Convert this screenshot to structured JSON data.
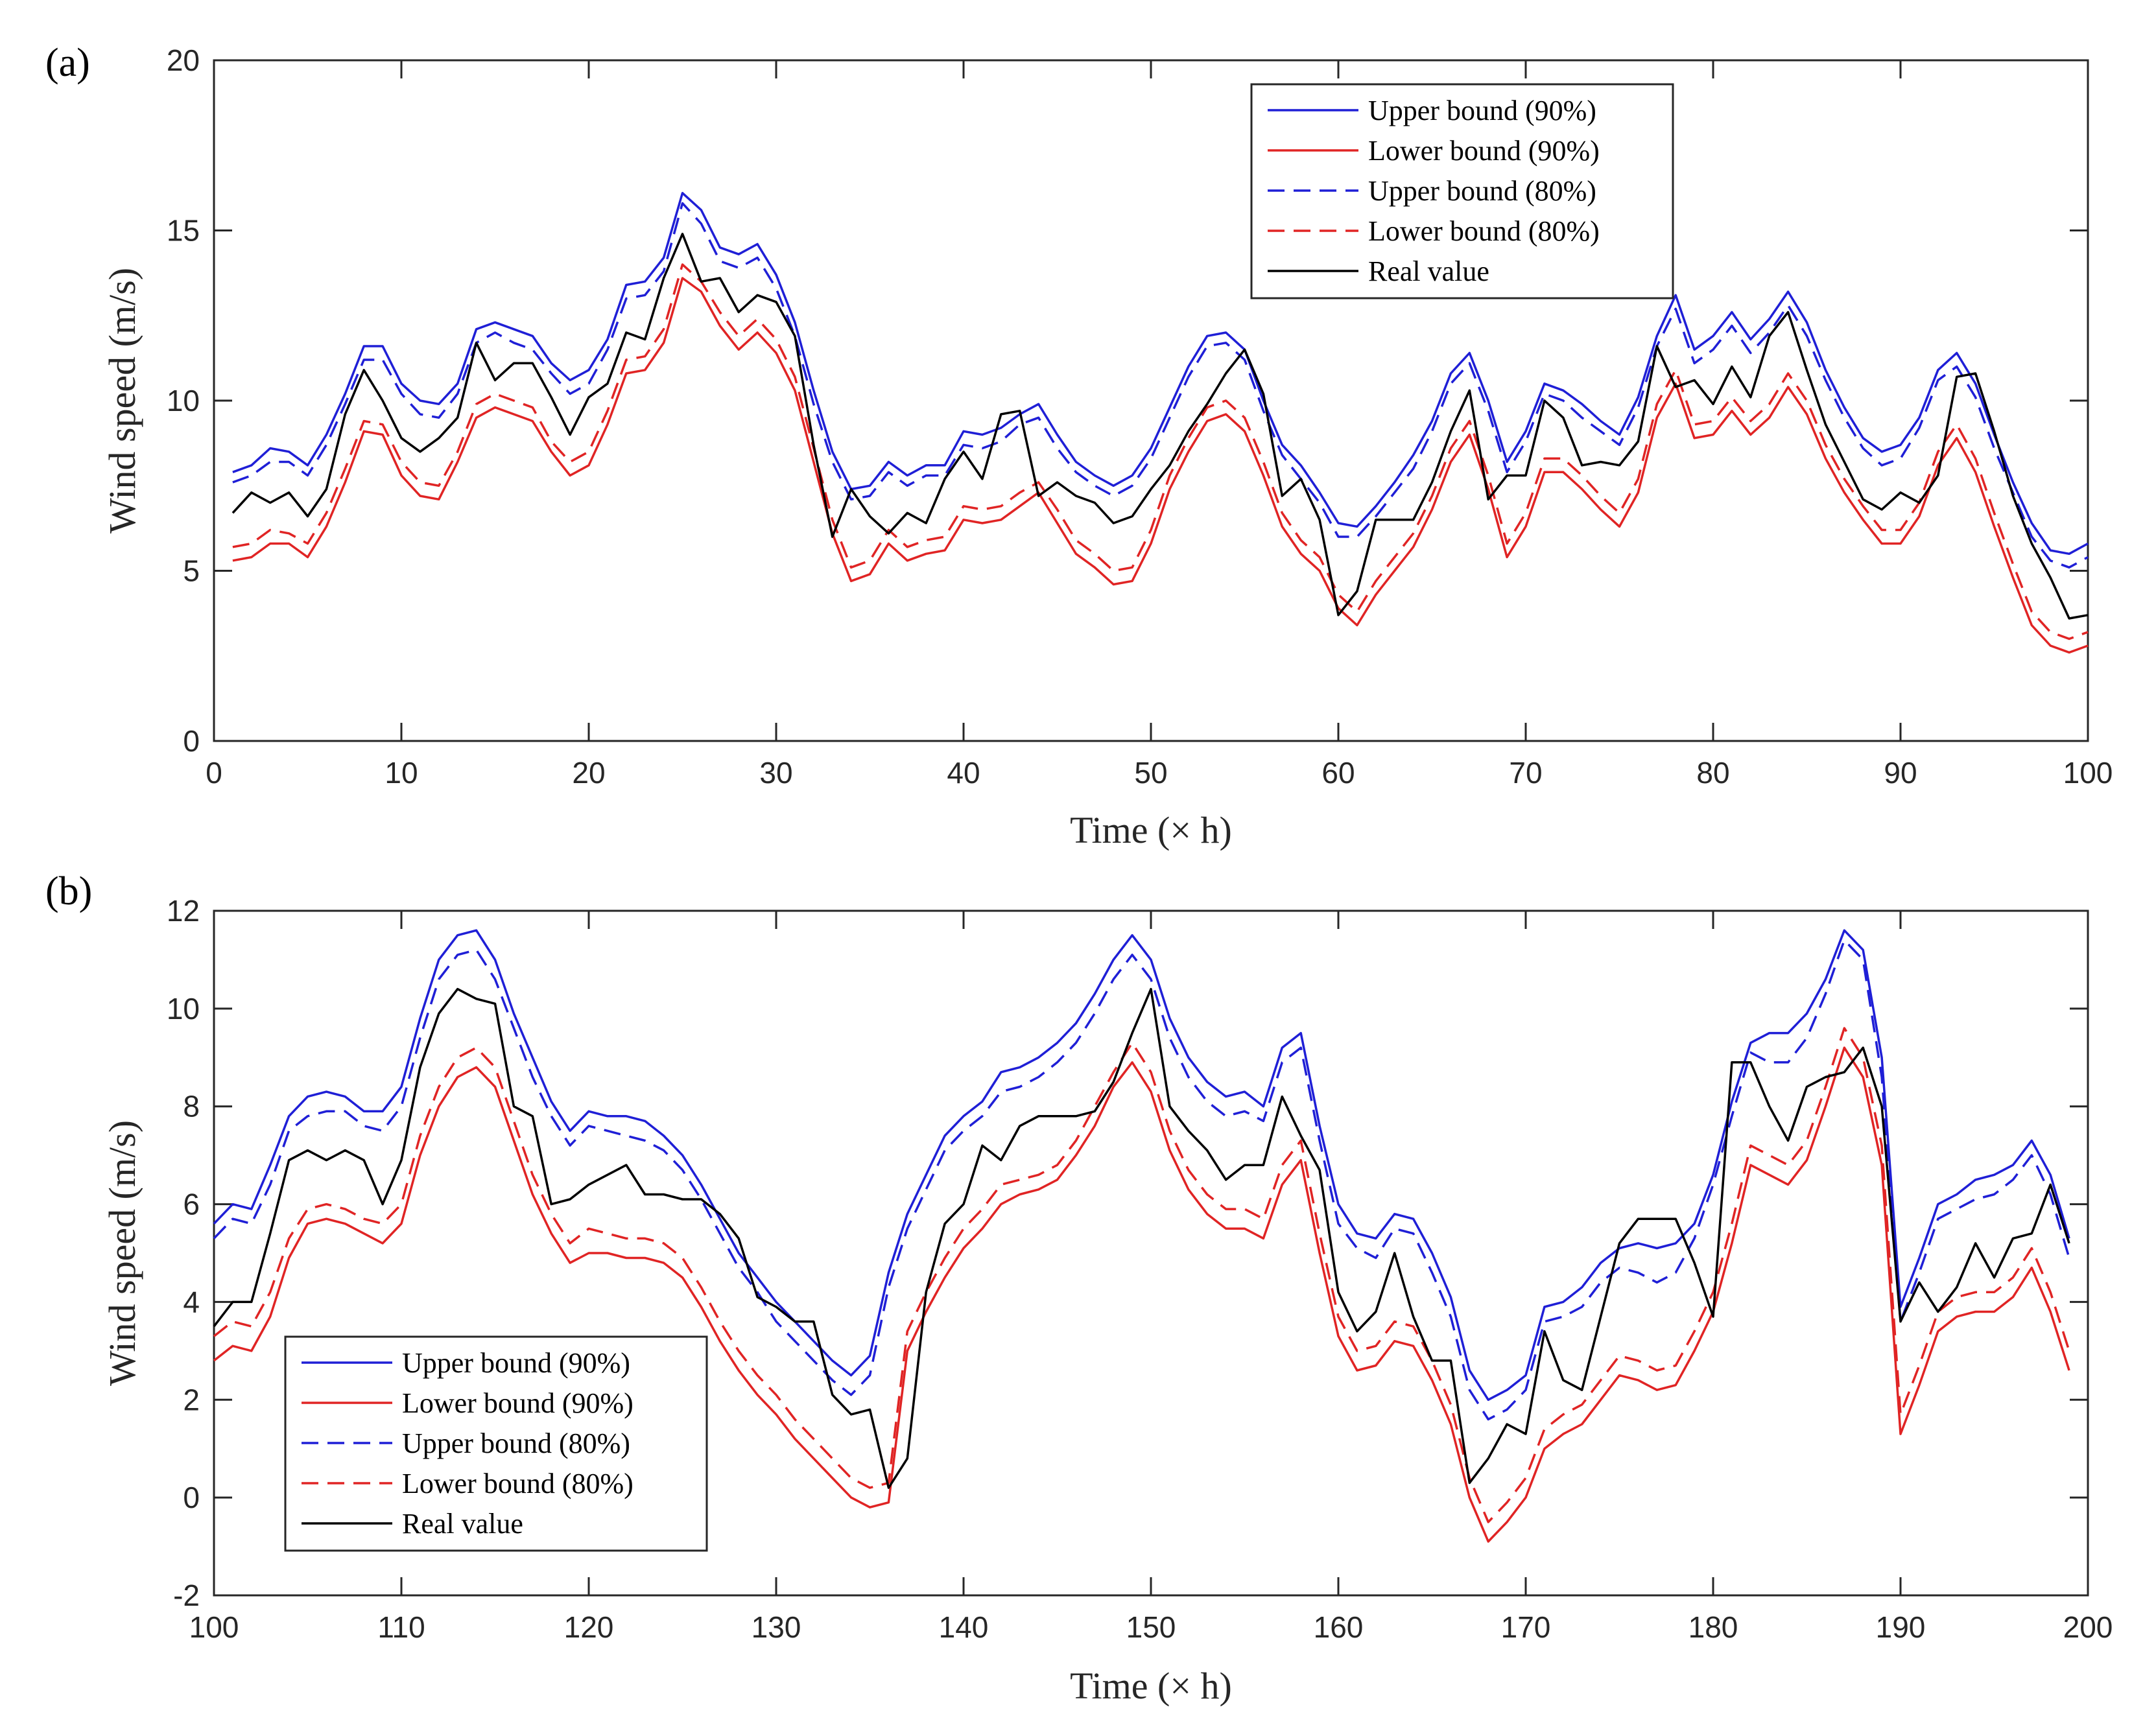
{
  "colors": {
    "upper": "#1f1fd6",
    "lower": "#e02424",
    "real": "#000000",
    "axis": "#262626"
  },
  "chart_data": [
    {
      "type": "line",
      "panel_label": "(a)",
      "xlabel": "Time (× h)",
      "ylabel": "Wind speed (m/s)",
      "xlim": [
        0,
        100
      ],
      "ylim": [
        0,
        20
      ],
      "xticks": [
        0,
        10,
        20,
        30,
        40,
        50,
        60,
        70,
        80,
        90,
        100
      ],
      "yticks": [
        0,
        5,
        10,
        15,
        20
      ],
      "legend_position": "top-right",
      "x_start": 1,
      "series": [
        {
          "name": "Upper bound (90%)",
          "style": "solid",
          "color": "upper",
          "values": [
            7.9,
            8.1,
            8.6,
            8.5,
            8.1,
            9.0,
            10.2,
            11.6,
            11.6,
            10.5,
            10.0,
            9.9,
            10.5,
            12.1,
            12.3,
            12.1,
            11.9,
            11.1,
            10.6,
            10.9,
            11.8,
            13.4,
            13.5,
            14.2,
            16.1,
            15.6,
            14.5,
            14.3,
            14.6,
            13.7,
            12.3,
            10.3,
            8.5,
            7.4,
            7.5,
            8.2,
            7.8,
            8.1,
            8.1,
            9.1,
            9.0,
            9.2,
            9.6,
            9.9,
            9.0,
            8.2,
            7.8,
            7.5,
            7.8,
            8.6,
            9.8,
            11.0,
            11.9,
            12.0,
            11.5,
            10.0,
            8.7,
            8.1,
            7.3,
            6.4,
            6.3,
            6.9,
            7.6,
            8.4,
            9.4,
            10.8,
            11.4,
            10.0,
            8.2,
            9.1,
            10.5,
            10.3,
            9.9,
            9.4,
            9.0,
            10.1,
            11.9,
            13.1,
            11.5,
            11.9,
            12.6,
            11.8,
            12.4,
            13.2,
            12.3,
            10.9,
            9.8,
            8.9,
            8.5,
            8.7,
            9.5,
            10.9,
            11.4,
            10.5,
            9.0,
            7.6,
            6.4,
            5.6,
            5.5,
            5.8
          ]
        },
        {
          "name": "Lower bound (90%)",
          "style": "solid",
          "color": "lower",
          "values": [
            5.3,
            5.4,
            5.8,
            5.8,
            5.4,
            6.3,
            7.6,
            9.1,
            9.0,
            7.8,
            7.2,
            7.1,
            8.2,
            9.5,
            9.8,
            9.6,
            9.4,
            8.5,
            7.8,
            8.1,
            9.3,
            10.8,
            10.9,
            11.7,
            13.6,
            13.2,
            12.2,
            11.5,
            12.0,
            11.4,
            10.3,
            8.2,
            6.1,
            4.7,
            4.9,
            5.8,
            5.3,
            5.5,
            5.6,
            6.5,
            6.4,
            6.5,
            6.9,
            7.3,
            6.4,
            5.5,
            5.1,
            4.6,
            4.7,
            5.8,
            7.4,
            8.5,
            9.4,
            9.6,
            9.1,
            7.8,
            6.3,
            5.5,
            5.0,
            3.9,
            3.4,
            4.3,
            5.0,
            5.7,
            6.8,
            8.2,
            9.0,
            7.4,
            5.4,
            6.3,
            7.9,
            7.9,
            7.4,
            6.8,
            6.3,
            7.3,
            9.5,
            10.5,
            8.9,
            9.0,
            9.7,
            9.0,
            9.5,
            10.4,
            9.6,
            8.3,
            7.3,
            6.5,
            5.8,
            5.8,
            6.6,
            8.1,
            8.9,
            7.9,
            6.3,
            4.8,
            3.4,
            2.8,
            2.6,
            2.8
          ]
        },
        {
          "name": "Upper bound (80%)",
          "style": "dashed",
          "color": "upper",
          "values": [
            7.6,
            7.8,
            8.2,
            8.2,
            7.8,
            8.7,
            9.9,
            11.2,
            11.2,
            10.2,
            9.6,
            9.5,
            10.2,
            11.7,
            12.0,
            11.7,
            11.5,
            10.8,
            10.2,
            10.5,
            11.5,
            13.0,
            13.1,
            13.8,
            15.8,
            15.2,
            14.1,
            13.9,
            14.2,
            13.3,
            11.9,
            9.9,
            8.2,
            7.1,
            7.2,
            7.9,
            7.5,
            7.8,
            7.8,
            8.7,
            8.6,
            8.8,
            9.3,
            9.5,
            8.6,
            7.9,
            7.5,
            7.2,
            7.5,
            8.3,
            9.5,
            10.7,
            11.6,
            11.7,
            11.2,
            9.7,
            8.4,
            7.7,
            7.0,
            6.0,
            6.0,
            6.6,
            7.3,
            8.0,
            9.1,
            10.5,
            11.1,
            9.7,
            7.9,
            8.8,
            10.2,
            10.0,
            9.5,
            9.1,
            8.7,
            9.8,
            11.6,
            12.7,
            11.1,
            11.5,
            12.2,
            11.4,
            12.0,
            12.8,
            11.9,
            10.6,
            9.5,
            8.6,
            8.1,
            8.3,
            9.2,
            10.6,
            11.0,
            10.1,
            8.6,
            7.3,
            6.0,
            5.3,
            5.1,
            5.4
          ]
        },
        {
          "name": "Lower bound (80%)",
          "style": "dashed",
          "color": "lower",
          "values": [
            5.7,
            5.8,
            6.2,
            6.1,
            5.8,
            6.7,
            8.0,
            9.4,
            9.3,
            8.2,
            7.6,
            7.5,
            8.5,
            9.9,
            10.2,
            10.0,
            9.8,
            8.8,
            8.2,
            8.5,
            9.7,
            11.2,
            11.3,
            12.1,
            14.0,
            13.5,
            12.6,
            11.9,
            12.4,
            11.8,
            10.7,
            8.6,
            6.5,
            5.1,
            5.3,
            6.2,
            5.7,
            5.9,
            6.0,
            6.9,
            6.8,
            6.9,
            7.3,
            7.6,
            6.8,
            5.9,
            5.5,
            5.0,
            5.1,
            6.2,
            7.8,
            8.9,
            9.8,
            10.0,
            9.5,
            8.2,
            6.7,
            5.9,
            5.4,
            4.3,
            3.8,
            4.7,
            5.4,
            6.1,
            7.2,
            8.6,
            9.4,
            7.8,
            5.8,
            6.7,
            8.3,
            8.3,
            7.8,
            7.2,
            6.7,
            7.7,
            9.9,
            10.9,
            9.3,
            9.4,
            10.1,
            9.4,
            9.9,
            10.8,
            10.0,
            8.7,
            7.7,
            6.9,
            6.2,
            6.2,
            7.0,
            8.5,
            9.3,
            8.3,
            6.7,
            5.2,
            3.8,
            3.2,
            3.0,
            3.2
          ]
        },
        {
          "name": "Real value",
          "style": "solid",
          "color": "real",
          "values": [
            6.7,
            7.3,
            7.0,
            7.3,
            6.6,
            7.4,
            9.6,
            10.9,
            10.0,
            8.9,
            8.5,
            8.9,
            9.5,
            11.7,
            10.6,
            11.1,
            11.1,
            10.1,
            9.0,
            10.1,
            10.5,
            12.0,
            11.8,
            13.6,
            14.9,
            13.5,
            13.6,
            12.6,
            13.1,
            12.9,
            11.9,
            8.7,
            6.0,
            7.4,
            6.6,
            6.1,
            6.7,
            6.4,
            7.7,
            8.5,
            7.7,
            9.6,
            9.7,
            7.2,
            7.6,
            7.2,
            7.0,
            6.4,
            6.6,
            7.4,
            8.1,
            9.1,
            9.9,
            10.8,
            11.5,
            10.2,
            7.2,
            7.7,
            6.5,
            3.7,
            4.4,
            6.5,
            6.5,
            6.5,
            7.6,
            9.1,
            10.3,
            7.1,
            7.8,
            7.8,
            10.0,
            9.5,
            8.1,
            8.2,
            8.1,
            8.8,
            11.6,
            10.4,
            10.6,
            9.9,
            11.0,
            10.1,
            11.9,
            12.6,
            10.9,
            9.3,
            8.2,
            7.1,
            6.8,
            7.3,
            7.0,
            7.8,
            10.7,
            10.8,
            9.1,
            7.2,
            5.8,
            4.8,
            3.6,
            3.7
          ]
        }
      ]
    },
    {
      "type": "line",
      "panel_label": "(b)",
      "xlabel": "Time (× h)",
      "ylabel": "Wind speed (m/s)",
      "xlim": [
        100,
        200
      ],
      "ylim": [
        -2,
        12
      ],
      "xticks": [
        100,
        110,
        120,
        130,
        140,
        150,
        160,
        170,
        180,
        190,
        200
      ],
      "yticks": [
        -2,
        0,
        2,
        4,
        6,
        8,
        10,
        12
      ],
      "legend_position": "bottom-left",
      "x_start": 100,
      "series": [
        {
          "name": "Upper bound (90%)",
          "style": "solid",
          "color": "upper",
          "values": [
            5.6,
            6.0,
            5.9,
            6.8,
            7.8,
            8.2,
            8.3,
            8.2,
            7.9,
            7.9,
            8.4,
            9.8,
            11.0,
            11.5,
            11.6,
            11.0,
            9.9,
            9.0,
            8.1,
            7.5,
            7.9,
            7.8,
            7.8,
            7.7,
            7.4,
            7.0,
            6.4,
            5.7,
            5.0,
            4.5,
            4.0,
            3.6,
            3.2,
            2.8,
            2.5,
            2.9,
            4.6,
            5.8,
            6.6,
            7.4,
            7.8,
            8.1,
            8.7,
            8.8,
            9.0,
            9.3,
            9.7,
            10.3,
            11.0,
            11.5,
            11.0,
            9.8,
            9.0,
            8.5,
            8.2,
            8.3,
            8.0,
            9.2,
            9.5,
            7.6,
            6.0,
            5.4,
            5.3,
            5.8,
            5.7,
            5.0,
            4.1,
            2.6,
            2.0,
            2.2,
            2.5,
            3.9,
            4.0,
            4.3,
            4.8,
            5.1,
            5.2,
            5.1,
            5.2,
            5.6,
            6.6,
            8.1,
            9.3,
            9.5,
            9.5,
            9.9,
            10.6,
            11.6,
            11.2,
            9.0,
            3.9,
            4.9,
            6.0,
            6.2,
            6.5,
            6.6,
            6.8,
            7.3,
            6.6,
            5.3
          ]
        },
        {
          "name": "Lower bound (90%)",
          "style": "solid",
          "color": "lower",
          "values": [
            2.8,
            3.1,
            3.0,
            3.7,
            4.9,
            5.6,
            5.7,
            5.6,
            5.4,
            5.2,
            5.6,
            7.0,
            8.0,
            8.6,
            8.8,
            8.4,
            7.3,
            6.2,
            5.4,
            4.8,
            5.0,
            5.0,
            4.9,
            4.9,
            4.8,
            4.5,
            3.9,
            3.2,
            2.6,
            2.1,
            1.7,
            1.2,
            0.8,
            0.4,
            0.0,
            -0.2,
            -0.1,
            3.0,
            3.8,
            4.5,
            5.1,
            5.5,
            6.0,
            6.2,
            6.3,
            6.5,
            7.0,
            7.6,
            8.4,
            8.9,
            8.3,
            7.1,
            6.3,
            5.8,
            5.5,
            5.5,
            5.3,
            6.4,
            6.9,
            5.0,
            3.3,
            2.6,
            2.7,
            3.2,
            3.1,
            2.4,
            1.5,
            0.0,
            -0.9,
            -0.5,
            0.0,
            1.0,
            1.3,
            1.5,
            2.0,
            2.5,
            2.4,
            2.2,
            2.3,
            3.0,
            3.8,
            5.2,
            6.8,
            6.6,
            6.4,
            6.9,
            8.0,
            9.2,
            8.6,
            6.8,
            1.3,
            2.3,
            3.4,
            3.7,
            3.8,
            3.8,
            4.1,
            4.7,
            3.8,
            2.6
          ]
        },
        {
          "name": "Upper bound (80%)",
          "style": "dashed",
          "color": "upper",
          "values": [
            5.3,
            5.7,
            5.6,
            6.4,
            7.5,
            7.8,
            7.9,
            7.9,
            7.6,
            7.5,
            8.0,
            9.4,
            10.6,
            11.1,
            11.2,
            10.6,
            9.6,
            8.6,
            7.8,
            7.2,
            7.6,
            7.5,
            7.4,
            7.3,
            7.1,
            6.7,
            6.1,
            5.4,
            4.7,
            4.2,
            3.6,
            3.2,
            2.8,
            2.4,
            2.1,
            2.5,
            4.3,
            5.5,
            6.3,
            7.1,
            7.5,
            7.8,
            8.3,
            8.4,
            8.6,
            8.9,
            9.3,
            9.9,
            10.6,
            11.1,
            10.6,
            9.4,
            8.6,
            8.1,
            7.8,
            7.9,
            7.7,
            8.9,
            9.2,
            7.3,
            5.6,
            5.1,
            4.9,
            5.5,
            5.4,
            4.6,
            3.7,
            2.2,
            1.6,
            1.8,
            2.2,
            3.6,
            3.7,
            3.9,
            4.4,
            4.7,
            4.6,
            4.4,
            4.6,
            5.3,
            6.4,
            7.8,
            9.1,
            8.9,
            8.9,
            9.4,
            10.3,
            11.4,
            11.0,
            8.6,
            3.6,
            4.6,
            5.7,
            5.9,
            6.1,
            6.2,
            6.5,
            7.0,
            6.2,
            4.9
          ]
        },
        {
          "name": "Lower bound (80%)",
          "style": "dashed",
          "color": "lower",
          "values": [
            3.3,
            3.6,
            3.5,
            4.2,
            5.3,
            5.9,
            6.0,
            5.9,
            5.7,
            5.6,
            6.0,
            7.4,
            8.4,
            9.0,
            9.2,
            8.8,
            7.7,
            6.6,
            5.8,
            5.2,
            5.5,
            5.4,
            5.3,
            5.3,
            5.2,
            4.9,
            4.3,
            3.6,
            3.0,
            2.5,
            2.1,
            1.6,
            1.2,
            0.8,
            0.4,
            0.2,
            0.3,
            3.4,
            4.2,
            4.9,
            5.5,
            5.9,
            6.4,
            6.5,
            6.6,
            6.8,
            7.3,
            8.0,
            8.7,
            9.3,
            8.7,
            7.5,
            6.7,
            6.2,
            5.9,
            5.9,
            5.7,
            6.8,
            7.3,
            5.4,
            3.7,
            3.0,
            3.1,
            3.6,
            3.5,
            2.8,
            1.9,
            0.4,
            -0.5,
            -0.1,
            0.4,
            1.4,
            1.7,
            1.9,
            2.4,
            2.9,
            2.8,
            2.6,
            2.7,
            3.4,
            4.2,
            5.6,
            7.2,
            7.0,
            6.8,
            7.3,
            8.4,
            9.6,
            9.0,
            7.2,
            1.7,
            2.7,
            3.8,
            4.1,
            4.2,
            4.2,
            4.5,
            5.1,
            4.2,
            3.0
          ]
        },
        {
          "name": "Real value",
          "style": "solid",
          "color": "real",
          "values": [
            3.5,
            4.0,
            4.0,
            5.4,
            6.9,
            7.1,
            6.9,
            7.1,
            6.9,
            6.0,
            6.9,
            8.8,
            9.9,
            10.4,
            10.2,
            10.1,
            8.0,
            7.8,
            6.0,
            6.1,
            6.4,
            6.6,
            6.8,
            6.2,
            6.2,
            6.1,
            6.1,
            5.8,
            5.3,
            4.1,
            3.9,
            3.6,
            3.6,
            2.1,
            1.7,
            1.8,
            0.2,
            0.8,
            4.2,
            5.6,
            6.0,
            7.2,
            6.9,
            7.6,
            7.8,
            7.8,
            7.8,
            7.9,
            8.5,
            9.5,
            10.4,
            8.0,
            7.5,
            7.1,
            6.5,
            6.8,
            6.8,
            8.2,
            7.4,
            6.7,
            4.2,
            3.4,
            3.8,
            5.0,
            3.7,
            2.8,
            2.8,
            0.3,
            0.8,
            1.5,
            1.3,
            3.4,
            2.4,
            2.2,
            3.7,
            5.2,
            5.7,
            5.7,
            5.7,
            4.8,
            3.7,
            8.9,
            8.9,
            8.0,
            7.3,
            8.4,
            8.6,
            8.7,
            9.2,
            8.0,
            3.6,
            4.4,
            3.8,
            4.3,
            5.2,
            4.5,
            5.3,
            5.4,
            6.4,
            5.2
          ]
        }
      ]
    }
  ]
}
